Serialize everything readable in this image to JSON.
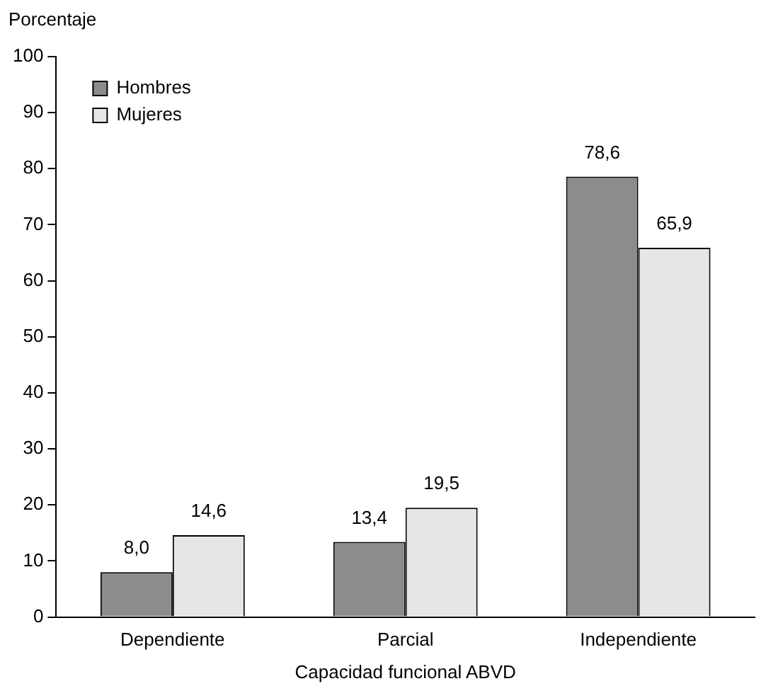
{
  "chart_data": {
    "type": "bar",
    "ylabel": "Porcentaje",
    "xlabel": "Capacidad funcional ABVD",
    "categories": [
      "Dependiente",
      "Parcial",
      "Independiente"
    ],
    "series": [
      {
        "name": "Hombres",
        "color": "#8c8c8c",
        "values": [
          8.0,
          13.4,
          78.6
        ],
        "value_labels": [
          "8,0",
          "13,4",
          "78,6"
        ]
      },
      {
        "name": "Mujeres",
        "color": "#e6e6e6",
        "values": [
          14.6,
          19.5,
          65.9
        ],
        "value_labels": [
          "14,6",
          "19,5",
          "65,9"
        ]
      }
    ],
    "ylim": [
      0,
      100
    ],
    "yticks": [
      0,
      10,
      20,
      30,
      40,
      50,
      60,
      70,
      80,
      90,
      100
    ],
    "grid": false,
    "legend": "top left"
  }
}
